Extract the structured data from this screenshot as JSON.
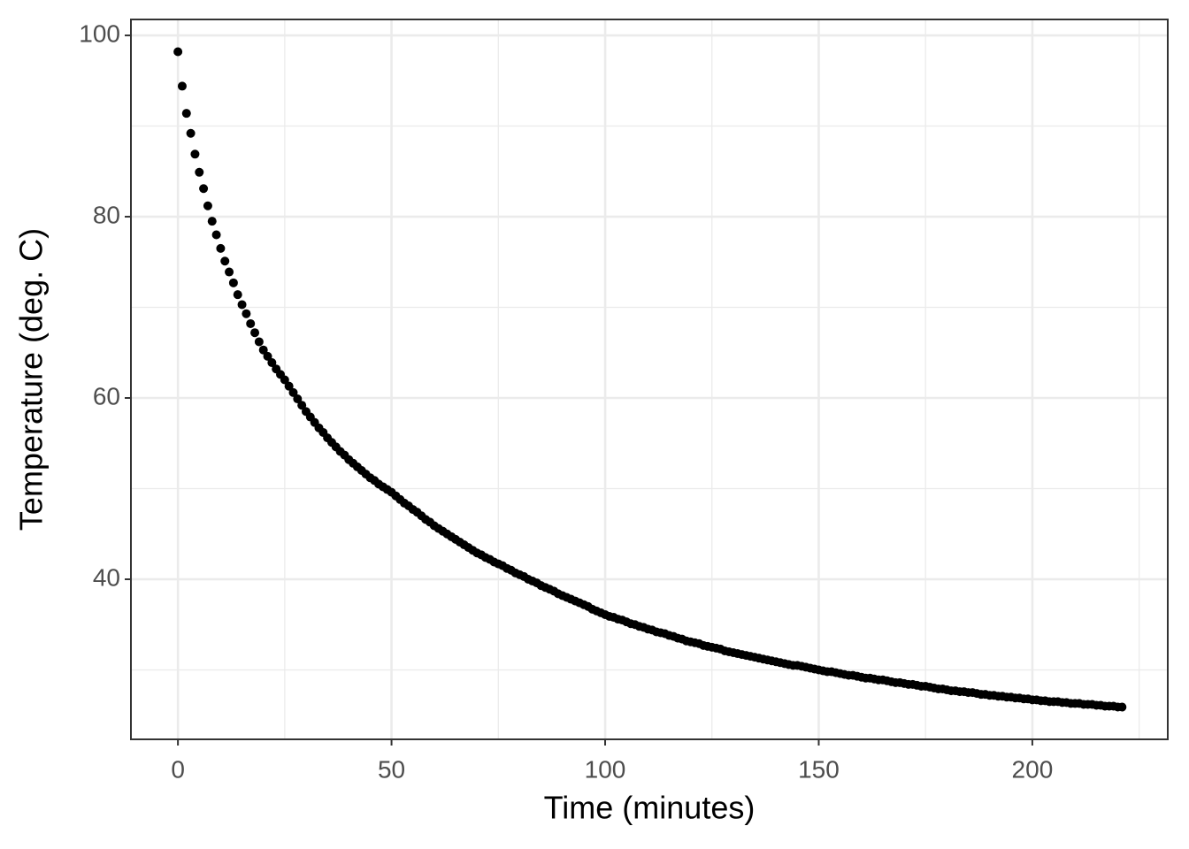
{
  "chart_data": {
    "type": "scatter",
    "x_label": "Time (minutes)",
    "y_label": "Temperature (deg. C)",
    "color": "#000000",
    "grid": true,
    "xlim": [
      -11,
      231.7
    ],
    "ylim": [
      22.34,
      101.76
    ],
    "xticks": [
      0,
      50,
      100,
      150,
      200
    ],
    "yticks": [
      40,
      60,
      80,
      100
    ],
    "minor_xticks": [
      25,
      75,
      125,
      175,
      225
    ],
    "minor_yticks": [
      30,
      50,
      70,
      90
    ],
    "x": [
      0,
      1,
      2,
      3,
      4,
      5,
      6,
      7,
      8,
      9,
      10,
      11,
      12,
      13,
      14,
      15,
      16,
      17,
      18,
      19,
      20,
      21,
      22,
      23,
      24,
      25,
      26,
      27,
      28,
      29,
      30,
      31,
      32,
      33,
      34,
      35,
      36,
      37,
      38,
      39,
      40,
      41,
      42,
      43,
      44,
      45,
      46,
      47,
      48,
      49,
      50,
      51,
      52,
      53,
      54,
      55,
      56,
      57,
      58,
      59,
      60,
      61,
      62,
      63,
      64,
      65,
      66,
      67,
      68,
      69,
      70,
      71,
      72,
      73,
      74,
      75,
      76,
      77,
      78,
      79,
      80,
      81,
      82,
      83,
      84,
      85,
      86,
      87,
      88,
      89,
      90,
      91,
      92,
      93,
      94,
      95,
      96,
      97,
      98,
      99,
      100,
      101,
      102,
      103,
      104,
      105,
      106,
      107,
      108,
      109,
      110,
      111,
      112,
      113,
      114,
      115,
      116,
      117,
      118,
      119,
      120,
      121,
      122,
      123,
      124,
      125,
      126,
      127,
      128,
      129,
      130,
      131,
      132,
      133,
      134,
      135,
      136,
      137,
      138,
      139,
      140,
      141,
      142,
      143,
      144,
      145,
      146,
      147,
      148,
      149,
      150,
      151,
      152,
      153,
      154,
      155,
      156,
      157,
      158,
      159,
      160,
      161,
      162,
      163,
      164,
      165,
      166,
      167,
      168,
      169,
      170,
      171,
      172,
      173,
      174,
      175,
      176,
      177,
      178,
      179,
      180,
      181,
      182,
      183,
      184,
      185,
      186,
      187,
      188,
      189,
      190,
      191,
      192,
      193,
      194,
      195,
      196,
      197,
      198,
      199,
      200,
      201,
      202,
      203,
      204,
      205,
      206,
      207,
      208,
      209,
      210,
      211,
      212,
      213,
      214,
      215,
      216,
      217,
      218,
      219,
      220,
      221
    ],
    "values": [
      98.2,
      94.4,
      91.4,
      89.2,
      86.9,
      84.9,
      83.1,
      81.2,
      79.5,
      78.0,
      76.5,
      75.1,
      73.9,
      72.7,
      71.4,
      70.3,
      69.3,
      68.2,
      67.2,
      66.2,
      65.3,
      64.6,
      63.9,
      63.2,
      62.6,
      62.0,
      61.3,
      60.6,
      59.9,
      59.2,
      58.5,
      57.9,
      57.3,
      56.7,
      56.2,
      55.6,
      55.1,
      54.6,
      54.1,
      53.7,
      53.2,
      52.8,
      52.4,
      52.0,
      51.6,
      51.2,
      50.9,
      50.5,
      50.2,
      49.9,
      49.6,
      49.2,
      48.8,
      48.4,
      48.1,
      47.7,
      47.4,
      47.0,
      46.6,
      46.3,
      45.9,
      45.6,
      45.3,
      45.0,
      44.7,
      44.4,
      44.1,
      43.8,
      43.5,
      43.2,
      42.9,
      42.7,
      42.4,
      42.2,
      41.9,
      41.7,
      41.5,
      41.2,
      41.0,
      40.7,
      40.5,
      40.3,
      40.0,
      39.8,
      39.6,
      39.3,
      39.1,
      38.9,
      38.7,
      38.4,
      38.2,
      38.0,
      37.8,
      37.6,
      37.4,
      37.2,
      37.0,
      36.7,
      36.5,
      36.3,
      36.1,
      35.9,
      35.8,
      35.6,
      35.5,
      35.3,
      35.1,
      35.0,
      34.8,
      34.7,
      34.5,
      34.4,
      34.2,
      34.1,
      34.0,
      33.8,
      33.7,
      33.5,
      33.4,
      33.2,
      33.1,
      33.0,
      32.9,
      32.7,
      32.6,
      32.5,
      32.4,
      32.3,
      32.1,
      32.0,
      31.9,
      31.8,
      31.7,
      31.6,
      31.5,
      31.4,
      31.3,
      31.2,
      31.1,
      31.0,
      30.9,
      30.8,
      30.7,
      30.6,
      30.5,
      30.5,
      30.4,
      30.3,
      30.2,
      30.1,
      30.0,
      29.9,
      29.8,
      29.8,
      29.7,
      29.6,
      29.5,
      29.4,
      29.4,
      29.3,
      29.2,
      29.1,
      29.1,
      29.0,
      28.9,
      28.9,
      28.8,
      28.7,
      28.6,
      28.6,
      28.5,
      28.4,
      28.4,
      28.3,
      28.2,
      28.2,
      28.1,
      28.0,
      27.9,
      27.9,
      27.8,
      27.7,
      27.7,
      27.6,
      27.6,
      27.5,
      27.5,
      27.4,
      27.3,
      27.3,
      27.2,
      27.2,
      27.1,
      27.1,
      27.0,
      27.0,
      26.9,
      26.9,
      26.8,
      26.8,
      26.7,
      26.7,
      26.6,
      26.6,
      26.5,
      26.5,
      26.5,
      26.4,
      26.4,
      26.3,
      26.3,
      26.3,
      26.2,
      26.2,
      26.2,
      26.1,
      26.1,
      26.0,
      26.0,
      26.0,
      25.9,
      25.9
    ]
  }
}
